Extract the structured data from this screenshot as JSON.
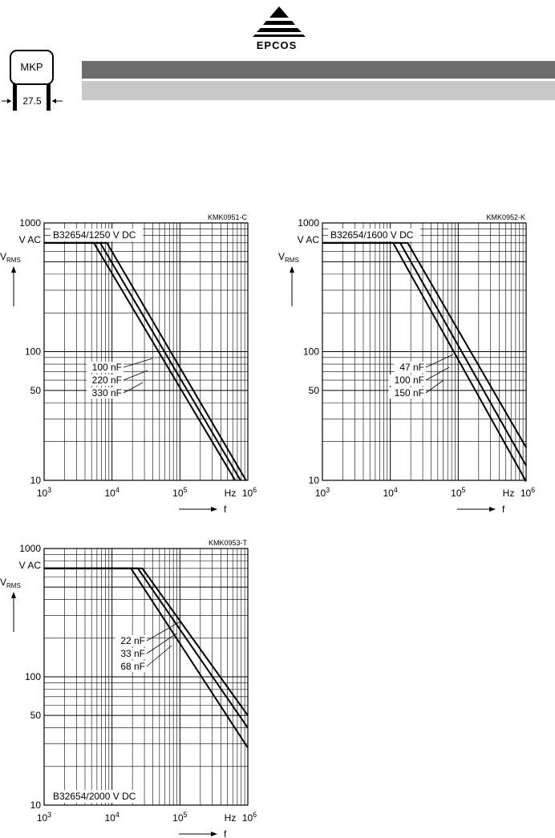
{
  "header": {
    "brand": "EPCOS",
    "badge_label": "MKP",
    "pitch_label": "27.5",
    "colors": {
      "header_bar": "#6d6d6d",
      "subheader_bar": "#c8c8c8"
    }
  },
  "chart_data": [
    {
      "type": "line",
      "code": "KMK0951-C",
      "series_label": "B32654/1250 V DC",
      "x_unit_label": "Hz",
      "x_symbol": "f",
      "y_unit_label": "V AC",
      "y_symbol": "V",
      "y_symbol_sub": "RMS",
      "x_scale": "log",
      "y_scale": "log",
      "xlim": [
        1000,
        1000000
      ],
      "ylim": [
        10,
        1000
      ],
      "x_ticks": [
        "10^3",
        "10^4",
        "10^5",
        "10^6"
      ],
      "y_ticks": [
        "1000",
        "100",
        "50",
        "10"
      ],
      "grid": true,
      "series": [
        {
          "name": "100 nF",
          "points": [
            [
              8400,
              700
            ],
            [
              940000,
              10
            ]
          ]
        },
        {
          "name": "220 nF",
          "points": [
            [
              6700,
              700
            ],
            [
              780000,
              10
            ]
          ]
        },
        {
          "name": "330 nF",
          "points": [
            [
              5400,
              700
            ],
            [
              650000,
              10
            ]
          ]
        }
      ]
    },
    {
      "type": "line",
      "code": "KMK0952-K",
      "series_label": "B32654/1600 V DC",
      "x_unit_label": "Hz",
      "x_symbol": "f",
      "y_unit_label": "V AC",
      "y_symbol": "V",
      "y_symbol_sub": "RMS",
      "x_scale": "log",
      "y_scale": "log",
      "xlim": [
        1000,
        1000000
      ],
      "ylim": [
        10,
        1000
      ],
      "x_ticks": [
        "10^3",
        "10^4",
        "10^5",
        "10^6"
      ],
      "y_ticks": [
        "1000",
        "100",
        "50",
        "10"
      ],
      "grid": true,
      "series": [
        {
          "name": "47 nF",
          "points": [
            [
              18000,
              700
            ],
            [
              1000000,
              18
            ]
          ]
        },
        {
          "name": "100 nF",
          "points": [
            [
              14000,
              700
            ],
            [
              1000000,
              13
            ]
          ]
        },
        {
          "name": "150 nF",
          "points": [
            [
              11000,
              700
            ],
            [
              1000000,
              9.8
            ]
          ]
        }
      ]
    },
    {
      "type": "line",
      "code": "KMK0953-T",
      "series_label": "B32654/2000 V DC",
      "x_unit_label": "Hz",
      "x_symbol": "f",
      "y_unit_label": "V AC",
      "y_symbol": "V",
      "y_symbol_sub": "RMS",
      "x_scale": "log",
      "y_scale": "log",
      "xlim": [
        1000,
        1000000
      ],
      "ylim": [
        10,
        1000
      ],
      "x_ticks": [
        "10^3",
        "10^4",
        "10^5",
        "10^6"
      ],
      "y_ticks": [
        "1000",
        "100",
        "50",
        "10"
      ],
      "grid": true,
      "series": [
        {
          "name": "22 nF",
          "points": [
            [
              28000,
              700
            ],
            [
              1000000,
              50
            ]
          ]
        },
        {
          "name": "33 nF",
          "points": [
            [
              24000,
              700
            ],
            [
              1000000,
              40
            ]
          ]
        },
        {
          "name": "68 nF",
          "points": [
            [
              19000,
              700
            ],
            [
              1000000,
              28
            ]
          ]
        }
      ]
    }
  ]
}
